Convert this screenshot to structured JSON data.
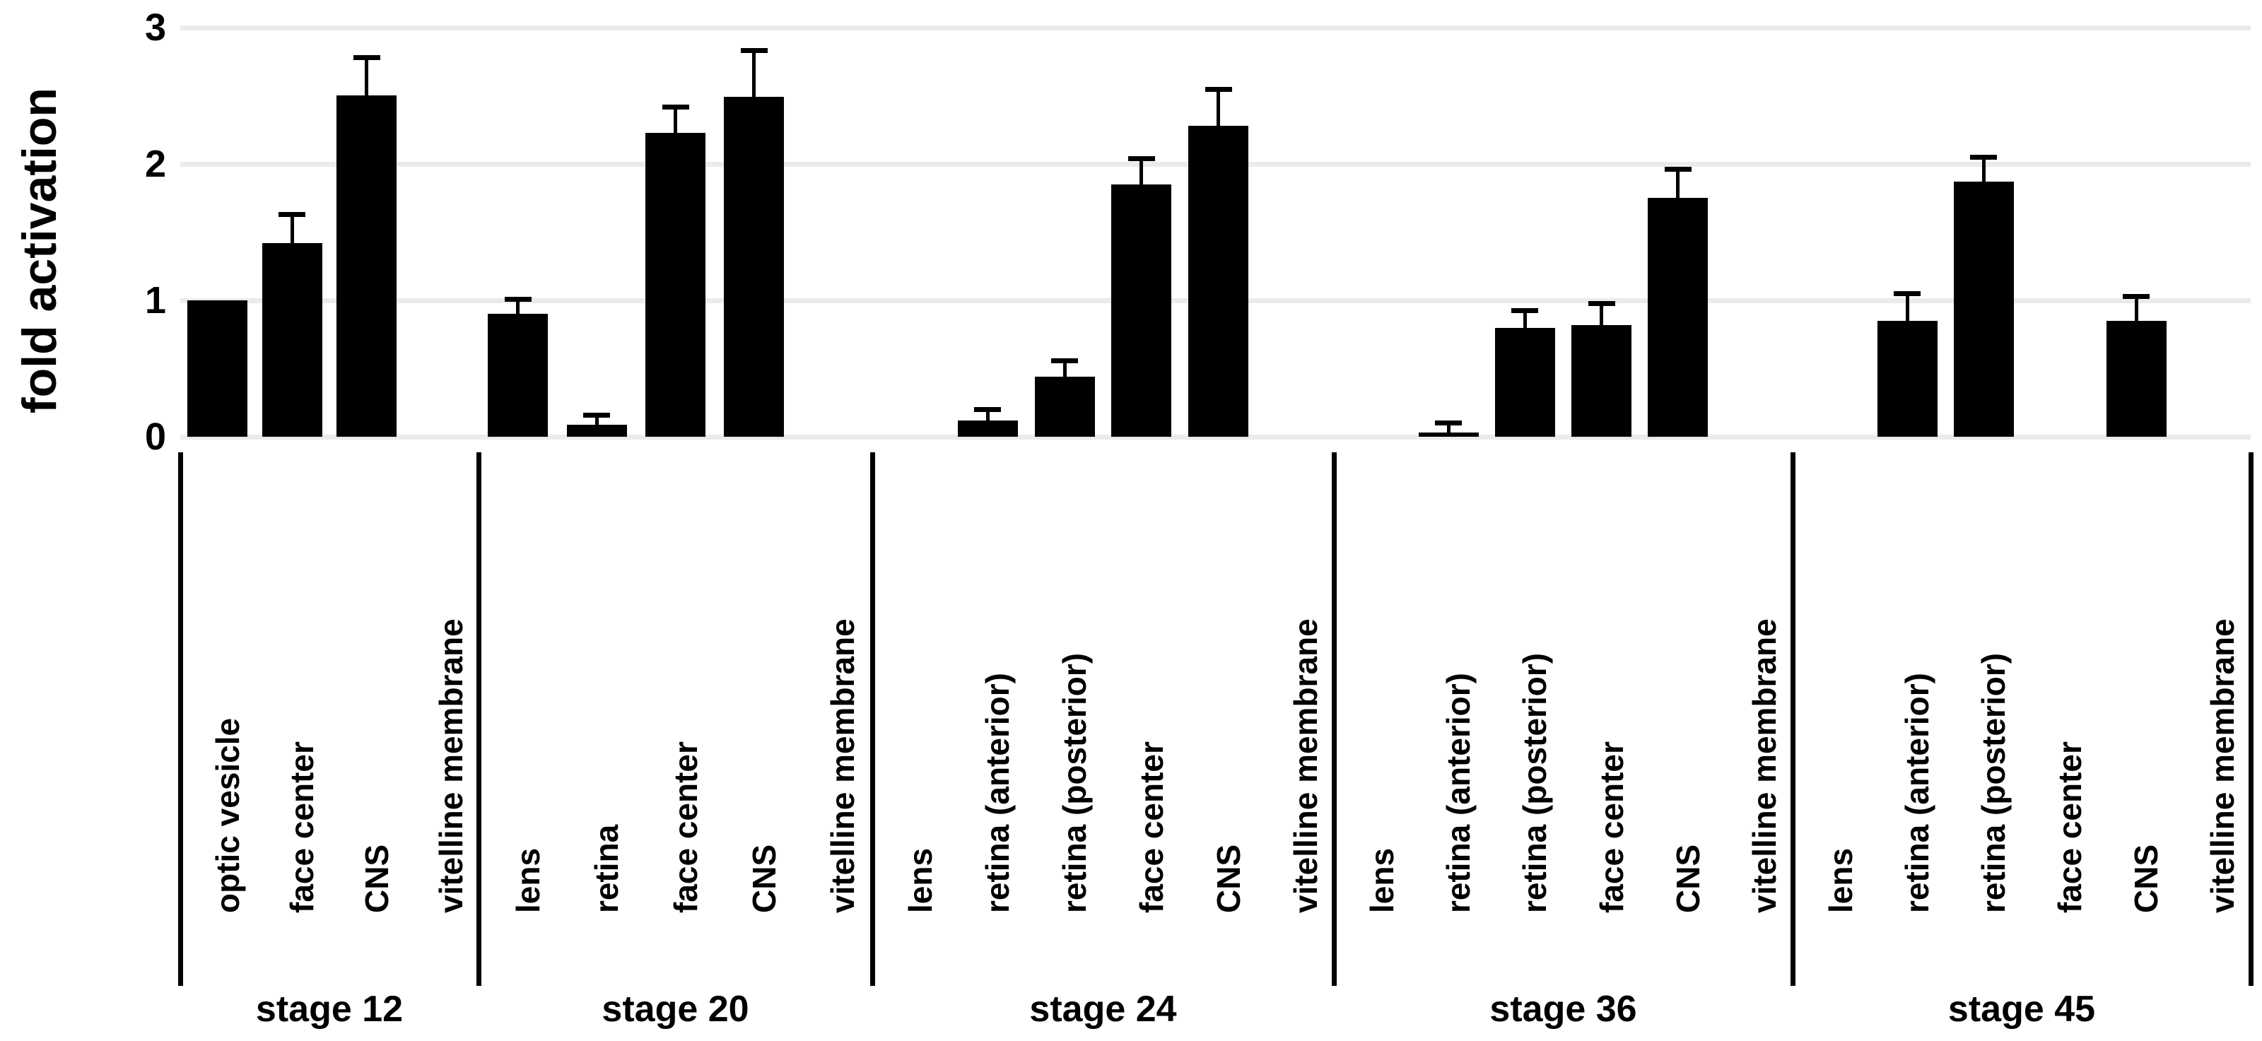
{
  "chart_data": {
    "type": "bar",
    "title": "",
    "xlabel": "",
    "ylabel": "fold activation",
    "ylim": [
      0,
      3
    ],
    "yticks": [
      0,
      1,
      2,
      3
    ],
    "grid": "horizontal-light",
    "legend": "none",
    "bar_color": "#000000",
    "background_color": "#ffffff",
    "gridline_color": "#ebebeb",
    "error_bars": "upper-whisker",
    "groups": [
      {
        "label": "stage 12",
        "bars": [
          {
            "category": "optic vesicle",
            "value": 1.0,
            "error": 0
          },
          {
            "category": "face center",
            "value": 1.42,
            "error": 0.2
          },
          {
            "category": "CNS",
            "value": 2.5,
            "error": 0.27
          },
          {
            "category": "vitelline membrane",
            "value": 0,
            "error": 0
          }
        ]
      },
      {
        "label": "stage 20",
        "bars": [
          {
            "category": "lens",
            "value": 0.9,
            "error": 0.1
          },
          {
            "category": "retina",
            "value": 0.09,
            "error": 0.06
          },
          {
            "category": "face center",
            "value": 2.23,
            "error": 0.18
          },
          {
            "category": "CNS",
            "value": 2.49,
            "error": 0.33
          },
          {
            "category": "vitelline membrane",
            "value": 0,
            "error": 0
          }
        ]
      },
      {
        "label": "stage 24",
        "bars": [
          {
            "category": "lens",
            "value": 0,
            "error": 0
          },
          {
            "category": "retina (anterior)",
            "value": 0.12,
            "error": 0.07
          },
          {
            "category": "retina (posterior)",
            "value": 0.44,
            "error": 0.11
          },
          {
            "category": "face center",
            "value": 1.85,
            "error": 0.18
          },
          {
            "category": "CNS",
            "value": 2.28,
            "error": 0.26
          },
          {
            "category": "vitelline membrane",
            "value": 0,
            "error": 0
          }
        ]
      },
      {
        "label": "stage 36",
        "bars": [
          {
            "category": "lens",
            "value": 0,
            "error": 0
          },
          {
            "category": "retina (anterior)",
            "value": 0.03,
            "error": 0.06
          },
          {
            "category": "retina (posterior)",
            "value": 0.8,
            "error": 0.12
          },
          {
            "category": "face center",
            "value": 0.82,
            "error": 0.15
          },
          {
            "category": "CNS",
            "value": 1.75,
            "error": 0.2
          },
          {
            "category": "vitelline membrane",
            "value": 0,
            "error": 0
          }
        ]
      },
      {
        "label": "stage 45",
        "bars": [
          {
            "category": "lens",
            "value": 0,
            "error": 0
          },
          {
            "category": "retina (anterior)",
            "value": 0.85,
            "error": 0.19
          },
          {
            "category": "retina (posterior)",
            "value": 1.87,
            "error": 0.17
          },
          {
            "category": "face center",
            "value": 0,
            "error": 0
          },
          {
            "category": "CNS",
            "value": 0.85,
            "error": 0.17
          },
          {
            "category": "vitelline membrane",
            "value": 0,
            "error": 0
          }
        ]
      }
    ]
  }
}
